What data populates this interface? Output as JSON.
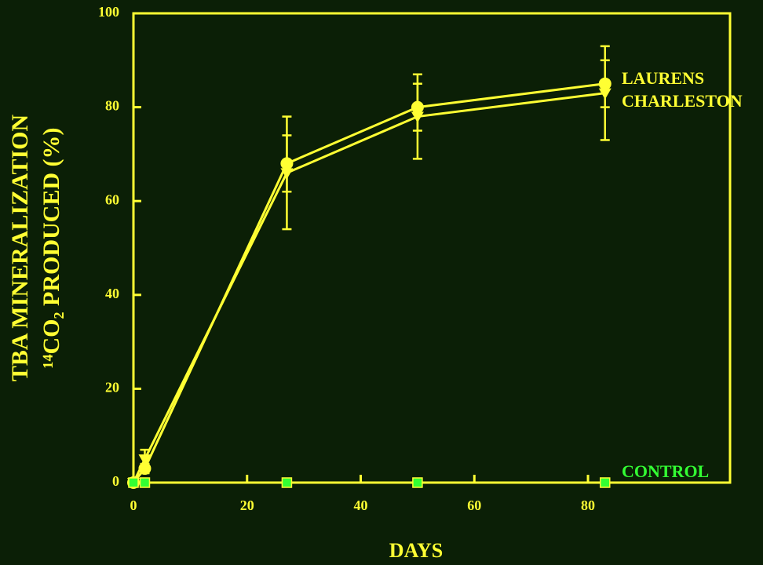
{
  "chart_data": {
    "type": "line",
    "xlabel": "DAYS",
    "ylabel": [
      "TBA MINERALIZATION",
      "¹⁴CO₂ PRODUCED (%)"
    ],
    "x": [
      0,
      2,
      27,
      50,
      83
    ],
    "series": [
      {
        "name": "LAURENS",
        "color": "#ffff33",
        "marker": "circle",
        "values": [
          0,
          3,
          68,
          80,
          85
        ],
        "errors": [
          0,
          1,
          6,
          5,
          5
        ]
      },
      {
        "name": "CHARLESTON",
        "color": "#ffff33",
        "marker": "triangle-down",
        "values": [
          0,
          5,
          66,
          78,
          83
        ],
        "errors": [
          0,
          2,
          12,
          9,
          10
        ]
      },
      {
        "name": "CONTROL",
        "color": "#33ff33",
        "marker": "square",
        "values": [
          0,
          0,
          0,
          0,
          0
        ]
      }
    ],
    "xlim": [
      0,
      105
    ],
    "ylim": [
      0,
      100
    ],
    "xticks": [
      0,
      20,
      40,
      60,
      80
    ],
    "yticks": [
      0,
      20,
      40,
      60,
      80,
      100
    ]
  }
}
